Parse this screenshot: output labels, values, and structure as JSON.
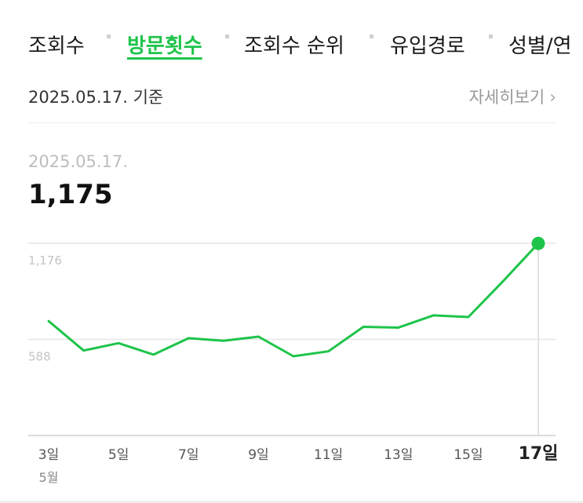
{
  "tabs": [
    {
      "label": "조회수",
      "active": false
    },
    {
      "label": "방문횟수",
      "active": true
    },
    {
      "label": "조회수 순위",
      "active": false
    },
    {
      "label": "유입경로",
      "active": false
    },
    {
      "label": "성별/연",
      "active": false
    }
  ],
  "basis_text": "2025.05.17. 기준",
  "detail_label": "자세히보기",
  "detail_icon": "chevron-right-icon",
  "selected": {
    "date": "2025.05.17.",
    "value": "1,175"
  },
  "colors": {
    "accent": "#1ec44a",
    "grid": "#e6e6e6",
    "axis": "#cfcfcf",
    "tick": "#555555"
  },
  "chart_data": {
    "type": "line",
    "x": [
      3,
      4,
      5,
      6,
      7,
      8,
      9,
      10,
      11,
      12,
      13,
      14,
      15,
      16,
      17
    ],
    "x_tick_labels": [
      "3일",
      "5일",
      "7일",
      "9일",
      "11일",
      "13일",
      "15일",
      "17일"
    ],
    "x_tick_values": [
      3,
      5,
      7,
      9,
      11,
      13,
      15,
      17
    ],
    "x_sublabel": "5월",
    "y_tick_labels": [
      "1,176",
      "588"
    ],
    "y_tick_values": [
      1176,
      588
    ],
    "ylim": [
      0,
      1176
    ],
    "series": [
      {
        "values": [
          700,
          520,
          565,
          495,
          595,
          580,
          605,
          485,
          515,
          665,
          660,
          735,
          725,
          945,
          1175
        ]
      }
    ],
    "highlight_x": 17,
    "grid": true
  }
}
